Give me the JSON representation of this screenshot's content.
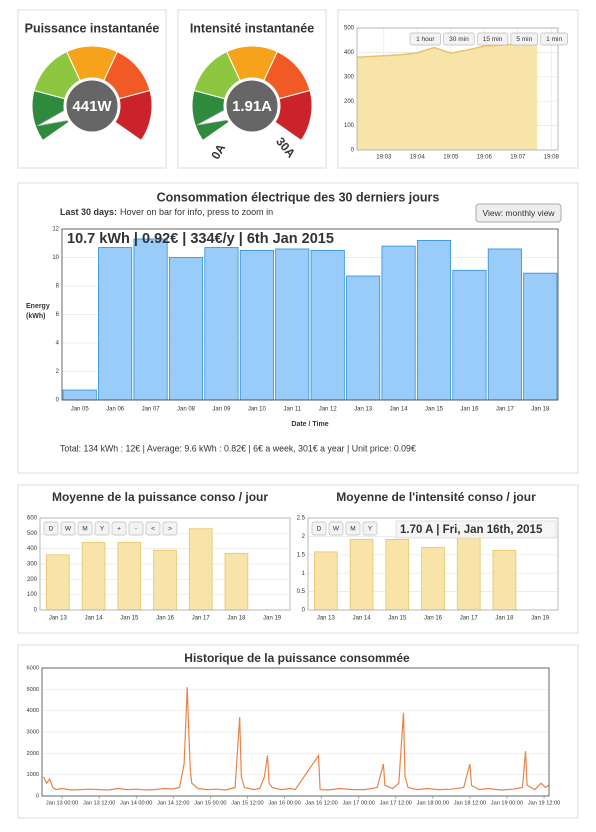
{
  "gauges": [
    {
      "title": "Puissance instantanée",
      "value_label": "441W",
      "bands": [
        "#2e8b3e",
        "#8dc63f",
        "#f7a21b",
        "#f15a24",
        "#cc2229"
      ]
    },
    {
      "title": "Intensité instantanée",
      "value_label": "1.91A",
      "value": 1.91,
      "min": {
        "value": 0,
        "label": "0A"
      },
      "max": {
        "value": 30,
        "label": "30A"
      },
      "bands": [
        "#2e8b3e",
        "#8dc63f",
        "#f7a21b",
        "#f15a24",
        "#cc2229"
      ]
    }
  ],
  "realtime": {
    "type": "area",
    "buttons": [
      "1 hour",
      "30 min",
      "15 min",
      "5 min",
      "1 min"
    ],
    "x": [
      2.2,
      3,
      3.5,
      4,
      4.5,
      5,
      5.5,
      6,
      6.5,
      7,
      7.58
    ],
    "values": [
      380,
      386,
      390,
      398,
      420,
      397,
      410,
      426,
      430,
      434,
      434
    ],
    "xlim": [
      2.2,
      8.2
    ],
    "xticks": [
      {
        "value": 3,
        "label": "19:03"
      },
      {
        "value": 4,
        "label": "19:04"
      },
      {
        "value": 5,
        "label": "19:05"
      },
      {
        "value": 6,
        "label": "19:06"
      },
      {
        "value": 7,
        "label": "19:07"
      },
      {
        "value": 8,
        "label": "19:08"
      }
    ],
    "ylim": [
      0,
      500
    ],
    "yticks": [
      0,
      100,
      200,
      300,
      400,
      500
    ],
    "grid": true,
    "color": "#f8e3a8",
    "stroke": "#e8c468"
  },
  "daily": {
    "type": "bar",
    "title": "Consommation électrique des 30 derniers jours",
    "subtitle": {
      "label": "Last 30 days:",
      "text": "Hover on bar for info, press to zoom in"
    },
    "button": "View: monthly view",
    "tooltip": "10.7 kWh | 0.92€ | 334€/y | 6th Jan 2015",
    "ylabel": "Energy (kWh)",
    "xlabel": "Date / Time",
    "categories": [
      "Jan 05",
      "Jan 06",
      "Jan 07",
      "Jan 08",
      "Jan 09",
      "Jan 10",
      "Jan 11",
      "Jan 12",
      "Jan 13",
      "Jan 14",
      "Jan 15",
      "Jan 16",
      "Jan 17",
      "Jan 18"
    ],
    "values": [
      0.7,
      10.7,
      11.3,
      10.0,
      10.7,
      10.5,
      10.6,
      10.5,
      8.7,
      10.8,
      11.2,
      9.1,
      10.6,
      8.9
    ],
    "ylim": [
      0,
      12
    ],
    "yticks": [
      0,
      2,
      4,
      6,
      8,
      10,
      12
    ],
    "grid": true,
    "color": "#99ccf8",
    "stroke": "#2f8fd8",
    "footer": "Total: 134 kWh : 12€ | Average: 9.6 kWh : 0.82€ | 6€ a week, 301€ a year | Unit price: 0.09€"
  },
  "power_daily": {
    "type": "bar",
    "title": "Moyenne de la puissance conso / jour",
    "buttons": [
      "D",
      "W",
      "M",
      "Y",
      "+",
      "-",
      "<",
      ">"
    ],
    "categories": [
      "Jan 13",
      "Jan 14",
      "Jan 15",
      "Jan 16",
      "Jan 17",
      "Jan 18",
      "Jan 19"
    ],
    "values": [
      360,
      440,
      440,
      390,
      530,
      370,
      null
    ],
    "ylim": [
      0,
      600
    ],
    "yticks": [
      0,
      100,
      200,
      300,
      400,
      500,
      600
    ],
    "grid": true,
    "color": "#f8e3a8",
    "stroke": "#e8c468"
  },
  "current_daily": {
    "type": "bar",
    "title": "Moyenne de l'intensité conso / jour",
    "buttons": [
      "D",
      "W",
      "M",
      "Y"
    ],
    "tooltip": "1.70 A | Fri, Jan 16th, 2015",
    "categories": [
      "Jan 13",
      "Jan 14",
      "Jan 15",
      "Jan 16",
      "Jan 17",
      "Jan 18",
      "Jan 19"
    ],
    "values": [
      1.58,
      1.92,
      1.92,
      1.7,
      2.3,
      1.62,
      null
    ],
    "ylim": [
      0,
      2.5
    ],
    "yticks": [
      0,
      0.5,
      1,
      1.5,
      2,
      2.5
    ],
    "grid": true,
    "color": "#f8e3a8",
    "stroke": "#e8c468"
  },
  "history": {
    "type": "line",
    "title": "Historique de la puissance consommée",
    "x": [
      -6,
      -5,
      -4,
      -3,
      -2,
      0,
      3,
      6,
      9,
      12,
      15,
      18,
      21,
      24,
      27,
      30,
      33,
      36,
      38,
      39.5,
      40.5,
      41,
      41.5,
      42,
      44,
      47,
      50,
      53,
      56,
      57.5,
      58,
      59,
      62,
      64,
      65.5,
      66.5,
      67,
      68,
      71,
      74,
      75.5,
      83,
      83.5,
      86,
      90,
      94,
      98,
      102,
      104,
      104.5,
      107,
      109,
      110.5,
      111,
      112,
      115,
      118,
      122,
      126,
      130,
      132,
      132.5,
      135,
      138,
      142,
      146,
      149,
      150,
      150.5,
      153,
      155,
      156.5,
      157.5
    ],
    "values": [
      900,
      600,
      800,
      400,
      300,
      350,
      280,
      300,
      320,
      300,
      280,
      350,
      300,
      320,
      280,
      300,
      350,
      330,
      400,
      1500,
      5100,
      3000,
      1200,
      600,
      350,
      300,
      320,
      280,
      400,
      3700,
      900,
      400,
      300,
      350,
      900,
      1900,
      600,
      400,
      300,
      350,
      300,
      1900,
      300,
      280,
      350,
      300,
      300,
      400,
      1500,
      500,
      350,
      600,
      3900,
      900,
      400,
      300,
      350,
      300,
      320,
      400,
      1500,
      500,
      300,
      350,
      280,
      320,
      400,
      2100,
      500,
      300,
      600,
      400,
      500
    ],
    "xlim": [
      -6.5,
      157.6
    ],
    "xticks": [
      {
        "value": 0,
        "label": "Jan 13 00:00"
      },
      {
        "value": 12,
        "label": "Jan 13 12:00"
      },
      {
        "value": 24,
        "label": "Jan 14 00:00"
      },
      {
        "value": 36,
        "label": "Jan 14 12:00"
      },
      {
        "value": 48,
        "label": "Jan 15 00:00"
      },
      {
        "value": 60,
        "label": "Jan 15 12:00"
      },
      {
        "value": 72,
        "label": "Jan 16 00:00"
      },
      {
        "value": 84,
        "label": "Jan 16 12:00"
      },
      {
        "value": 96,
        "label": "Jan 17 00:00"
      },
      {
        "value": 108,
        "label": "Jan 17 12:00"
      },
      {
        "value": 120,
        "label": "Jan 18 00:00"
      },
      {
        "value": 132,
        "label": "Jan 18 12:00"
      },
      {
        "value": 144,
        "label": "Jan 19 00:00"
      },
      {
        "value": 156,
        "label": "Jan 19 12:00"
      }
    ],
    "ylim": [
      0,
      6000
    ],
    "yticks": [
      0,
      1000,
      2000,
      3000,
      4000,
      5000,
      6000
    ],
    "grid": true,
    "color": "#e8844a"
  }
}
